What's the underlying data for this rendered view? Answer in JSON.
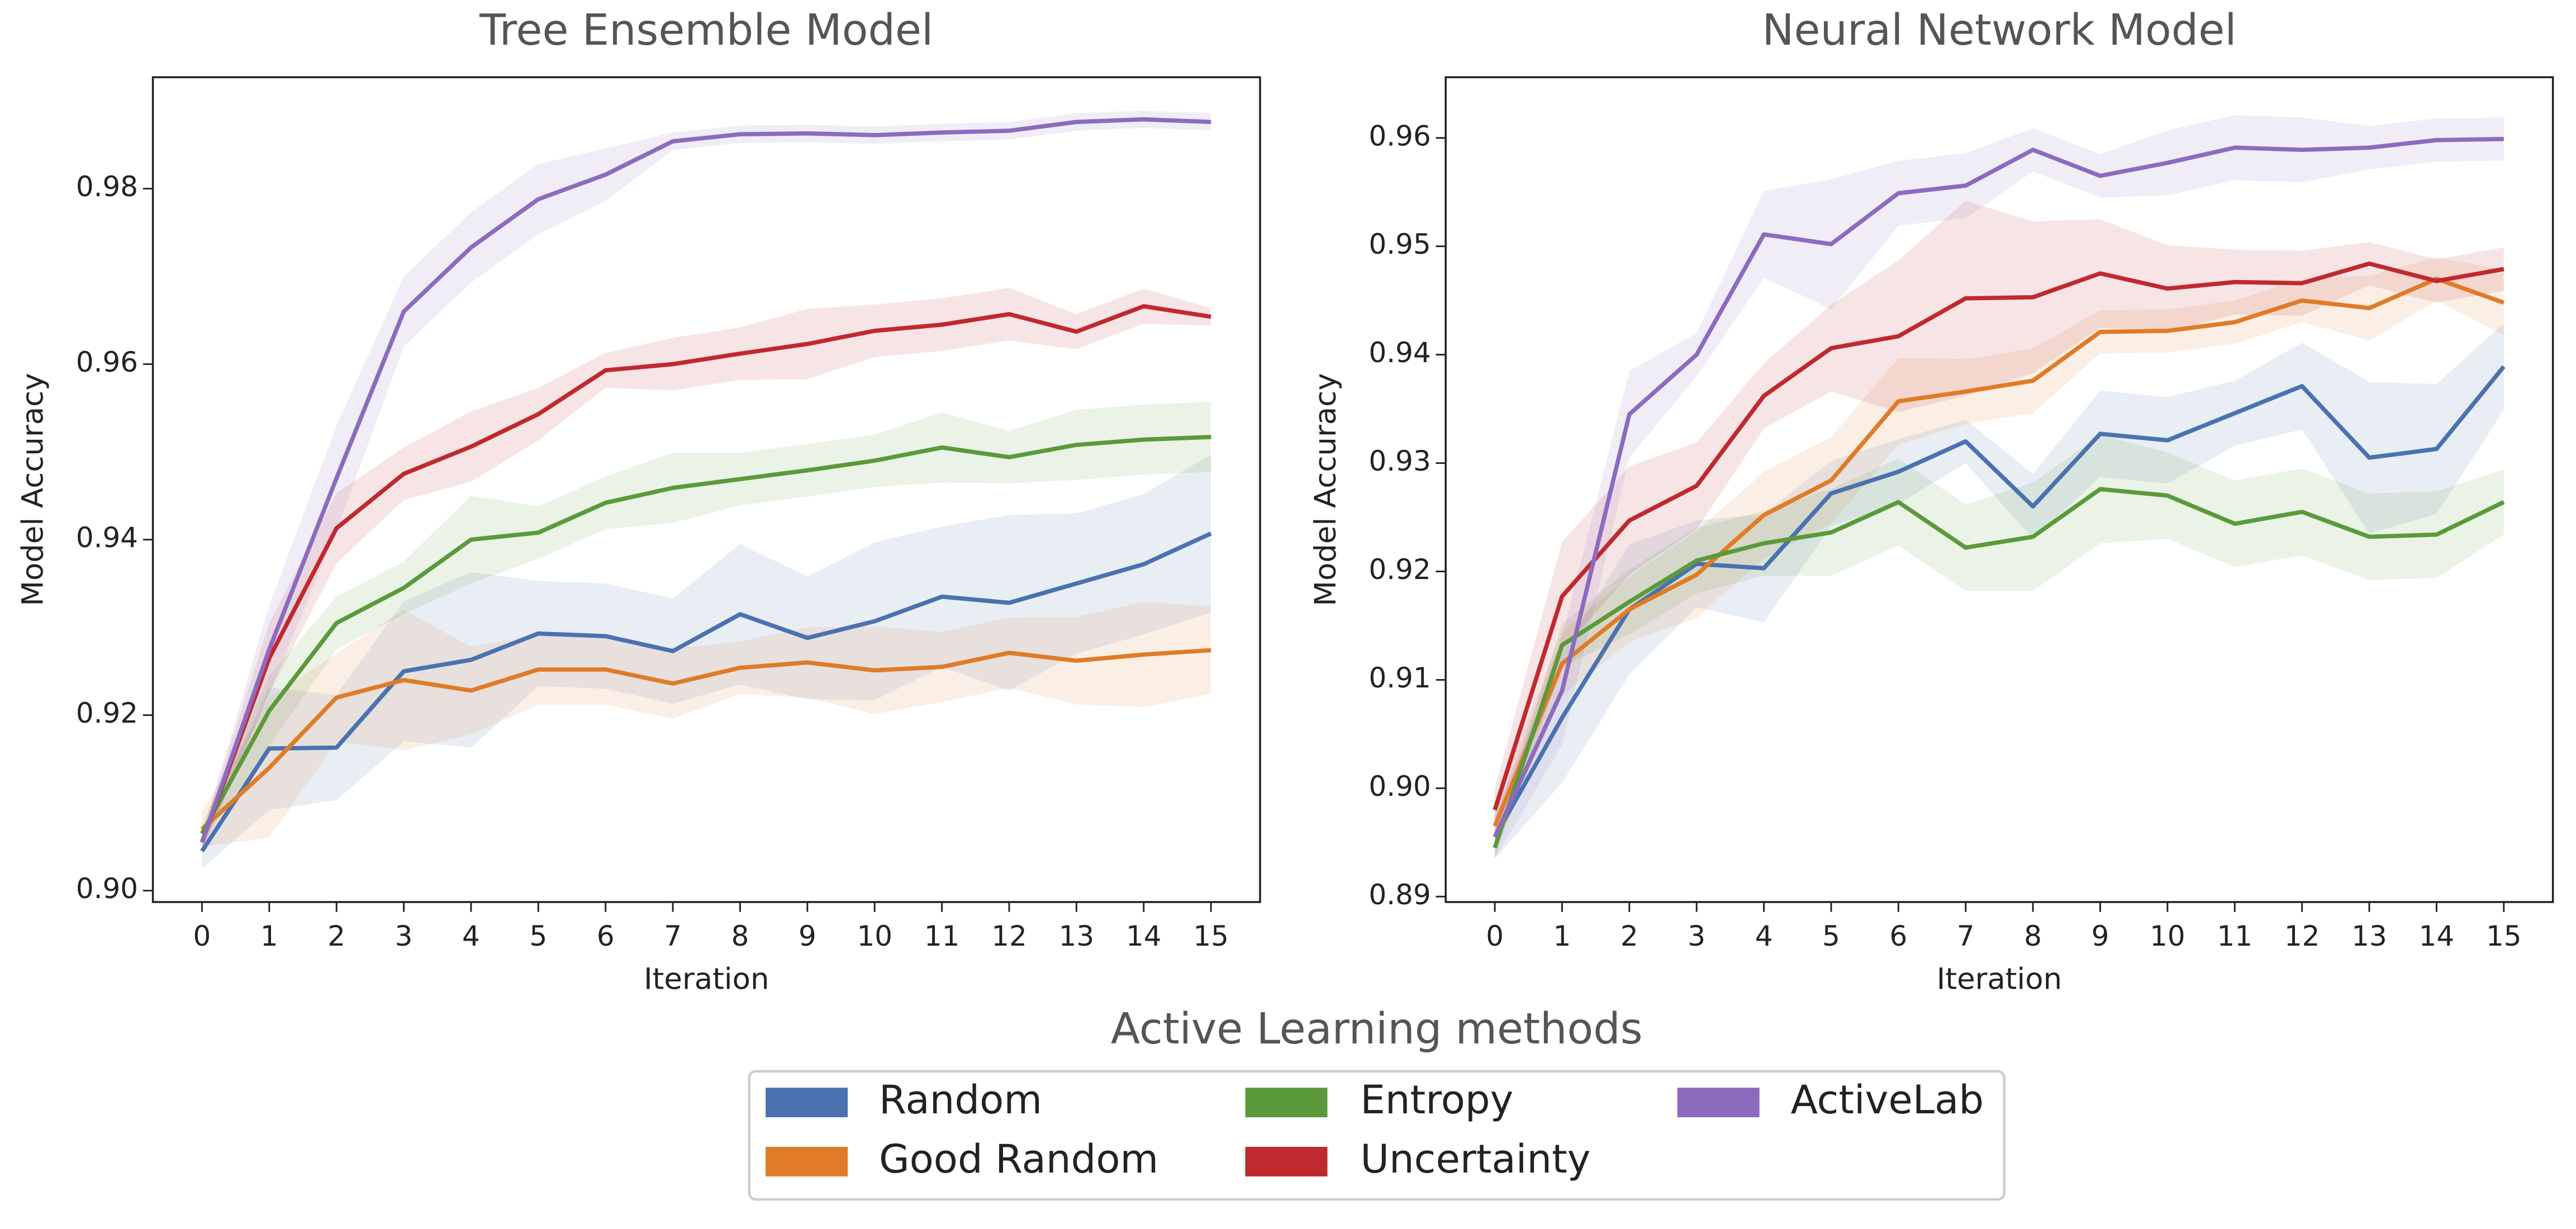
{
  "chart_data": [
    {
      "type": "line",
      "title": "Tree Ensemble Model",
      "x_label": "Iteration",
      "y_label": "Model Accuracy",
      "x": [
        0,
        1,
        2,
        3,
        4,
        5,
        6,
        7,
        8,
        9,
        10,
        11,
        12,
        13,
        14,
        15
      ],
      "xlim": [
        -0.73,
        15.73
      ],
      "xticks": [
        0,
        1,
        2,
        3,
        4,
        5,
        6,
        7,
        8,
        9,
        10,
        11,
        12,
        13,
        14,
        15
      ],
      "ylim": [
        0.8987,
        0.9927
      ],
      "yticks": [
        {
          "value": 0.9,
          "label": "0.90"
        },
        0.92,
        0.94,
        0.96,
        0.98
      ],
      "series": [
        {
          "name": "Random",
          "color": "#4a72b0",
          "values": [
            0.9045,
            0.9162,
            0.9163,
            0.925,
            0.9263,
            0.9293,
            0.929,
            0.9273,
            0.9315,
            0.9288,
            0.9307,
            0.9335,
            0.9328,
            0.935,
            0.9372,
            0.9407
          ],
          "error": [
            0.002,
            0.007,
            0.006,
            0.008,
            0.01,
            0.006,
            0.006,
            0.006,
            0.008,
            0.007,
            0.009,
            0.008,
            0.01,
            0.008,
            0.008,
            0.009
          ]
        },
        {
          "name": "Good Random",
          "color": "#e07b28",
          "values": [
            0.907,
            0.914,
            0.922,
            0.924,
            0.9228,
            0.9252,
            0.9252,
            0.9236,
            0.9254,
            0.926,
            0.9251,
            0.9255,
            0.9271,
            0.9262,
            0.9269,
            0.9274
          ],
          "error": [
            0.002,
            0.008,
            0.005,
            0.008,
            0.005,
            0.004,
            0.004,
            0.004,
            0.003,
            0.004,
            0.005,
            0.004,
            0.004,
            0.005,
            0.006,
            0.005
          ]
        },
        {
          "name": "Entropy",
          "color": "#5a9a3a",
          "values": [
            0.9065,
            0.9205,
            0.9305,
            0.9345,
            0.94,
            0.9408,
            0.9442,
            0.9459,
            0.9469,
            0.9479,
            0.949,
            0.9505,
            0.9494,
            0.9508,
            0.9514,
            0.9517
          ],
          "error": [
            0.001,
            0.004,
            0.003,
            0.003,
            0.005,
            0.003,
            0.003,
            0.004,
            0.003,
            0.003,
            0.003,
            0.004,
            0.003,
            0.004,
            0.004,
            0.004
          ]
        },
        {
          "name": "Uncertainty",
          "color": "#c0292e",
          "values": [
            0.9055,
            0.9265,
            0.9413,
            0.9475,
            0.9506,
            0.9543,
            0.9593,
            0.96,
            0.9612,
            0.9623,
            0.9638,
            0.9645,
            0.9657,
            0.9637,
            0.9666,
            0.9654
          ],
          "error": [
            0.001,
            0.004,
            0.004,
            0.003,
            0.004,
            0.003,
            0.002,
            0.003,
            0.003,
            0.004,
            0.003,
            0.003,
            0.003,
            0.002,
            0.002,
            0.001
          ]
        },
        {
          "name": "ActiveLab",
          "color": "#8c6bbf",
          "values": [
            0.9055,
            0.9275,
            0.947,
            0.966,
            0.9733,
            0.9788,
            0.9816,
            0.9854,
            0.9862,
            0.9863,
            0.9861,
            0.9864,
            0.9866,
            0.9876,
            0.9879,
            0.9876
          ],
          "error": [
            0.001,
            0.005,
            0.006,
            0.004,
            0.004,
            0.004,
            0.003,
            0.001,
            0.001,
            0.001,
            0.001,
            0.001,
            0.001,
            0.001,
            0.001,
            0.001
          ]
        }
      ]
    },
    {
      "type": "line",
      "title": "Neural Network Model",
      "x_label": "Iteration",
      "y_label": "Model Accuracy",
      "x": [
        0,
        1,
        2,
        3,
        4,
        5,
        6,
        7,
        8,
        9,
        10,
        11,
        12,
        13,
        14,
        15
      ],
      "xlim": [
        -0.73,
        15.73
      ],
      "xticks": [
        0,
        1,
        2,
        3,
        4,
        5,
        6,
        7,
        8,
        9,
        10,
        11,
        12,
        13,
        14,
        15
      ],
      "ylim": [
        0.8895,
        0.9656
      ],
      "yticks": [
        0.89,
        {
          "value": 0.9,
          "label": "0.90"
        },
        0.91,
        0.92,
        0.93,
        0.94,
        0.95,
        0.96
      ],
      "series": [
        {
          "name": "Random",
          "color": "#4a72b0",
          "values": [
            0.8955,
            0.9065,
            0.9165,
            0.9207,
            0.9203,
            0.9272,
            0.9292,
            0.932,
            0.926,
            0.9327,
            0.9321,
            0.9346,
            0.9371,
            0.9305,
            0.9313,
            0.9389
          ],
          "error": [
            0.002,
            0.006,
            0.006,
            0.004,
            0.005,
            0.003,
            0.003,
            0.002,
            0.003,
            0.004,
            0.004,
            0.003,
            0.004,
            0.007,
            0.006,
            0.004
          ]
        },
        {
          "name": "Good Random",
          "color": "#e07b28",
          "values": [
            0.8965,
            0.9115,
            0.9165,
            0.9197,
            0.9252,
            0.9284,
            0.9357,
            0.9366,
            0.9376,
            0.9421,
            0.9422,
            0.943,
            0.945,
            0.9443,
            0.947,
            0.9448
          ],
          "error": [
            0.002,
            0.003,
            0.003,
            0.004,
            0.004,
            0.004,
            0.004,
            0.003,
            0.003,
            0.002,
            0.002,
            0.002,
            0.002,
            0.003,
            0.002,
            0.003
          ]
        },
        {
          "name": "Entropy",
          "color": "#5a9a3a",
          "values": [
            0.8945,
            0.9132,
            0.9172,
            0.921,
            0.9226,
            0.9236,
            0.9264,
            0.9222,
            0.9232,
            0.9276,
            0.927,
            0.9244,
            0.9255,
            0.9232,
            0.9234,
            0.9264
          ],
          "error": [
            0.001,
            0.002,
            0.003,
            0.003,
            0.003,
            0.004,
            0.004,
            0.004,
            0.005,
            0.005,
            0.004,
            0.004,
            0.004,
            0.004,
            0.004,
            0.003
          ]
        },
        {
          "name": "Uncertainty",
          "color": "#c0292e",
          "values": [
            0.898,
            0.9177,
            0.9247,
            0.9279,
            0.9362,
            0.9406,
            0.9417,
            0.9452,
            0.9453,
            0.9475,
            0.9461,
            0.9467,
            0.9466,
            0.9484,
            0.9468,
            0.9479
          ],
          "error": [
            0.002,
            0.005,
            0.005,
            0.004,
            0.003,
            0.004,
            0.007,
            0.009,
            0.007,
            0.005,
            0.004,
            0.003,
            0.003,
            0.002,
            0.002,
            0.002
          ]
        },
        {
          "name": "ActiveLab",
          "color": "#8c6bbf",
          "values": [
            0.8955,
            0.909,
            0.9345,
            0.94,
            0.9511,
            0.9502,
            0.9549,
            0.9556,
            0.9589,
            0.9565,
            0.9577,
            0.9591,
            0.9589,
            0.9591,
            0.9598,
            0.9599
          ],
          "error": [
            0.002,
            0.005,
            0.004,
            0.002,
            0.004,
            0.006,
            0.003,
            0.003,
            0.002,
            0.002,
            0.003,
            0.003,
            0.003,
            0.002,
            0.002,
            0.002
          ]
        }
      ]
    }
  ],
  "legend": {
    "title": "Active Learning methods",
    "position": "lower center"
  }
}
